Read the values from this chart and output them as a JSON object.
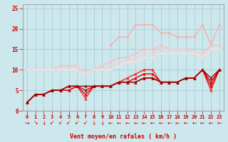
{
  "title": "",
  "xlabel": "Vent moyen/en rafales ( km/h )",
  "background_color": "#cce8ec",
  "grid_color": "#aaccd4",
  "x_ticks": [
    0,
    1,
    2,
    3,
    4,
    5,
    6,
    7,
    8,
    9,
    10,
    11,
    12,
    13,
    14,
    15,
    16,
    17,
    18,
    19,
    20,
    21,
    22,
    23
  ],
  "ylim": [
    0,
    26
  ],
  "yticks": [
    0,
    5,
    10,
    15,
    20,
    25
  ],
  "series": [
    {
      "color": "#ffaaaa",
      "linewidth": 1.0,
      "marker": "o",
      "markersize": 2.0,
      "data": [
        null,
        null,
        null,
        null,
        null,
        null,
        null,
        null,
        null,
        null,
        16,
        18,
        18,
        21,
        21,
        21,
        19,
        19,
        18,
        18,
        18,
        21,
        16,
        21
      ]
    },
    {
      "color": "#ffbbbb",
      "linewidth": 1.0,
      "marker": "o",
      "markersize": 2.0,
      "data": [
        10,
        10,
        10,
        10,
        11,
        11,
        11,
        9,
        10,
        11,
        12,
        13,
        13,
        14,
        15,
        15,
        16,
        15,
        15,
        15,
        14,
        14,
        16,
        16
      ]
    },
    {
      "color": "#ffcccc",
      "linewidth": 1.0,
      "marker": "o",
      "markersize": 2.0,
      "data": [
        10,
        10,
        10,
        10,
        10,
        10,
        11,
        9,
        10,
        10,
        11,
        12,
        12,
        13,
        14,
        14,
        15,
        15,
        15,
        15,
        14,
        14,
        15,
        15
      ]
    },
    {
      "color": "#ffdddd",
      "linewidth": 1.0,
      "marker": "o",
      "markersize": 2.0,
      "data": [
        10,
        10,
        10,
        10,
        10,
        10,
        10,
        9,
        10,
        10,
        10,
        11,
        12,
        12,
        13,
        13,
        14,
        14,
        14,
        14,
        14,
        13,
        15,
        15
      ]
    },
    {
      "color": "#ff2222",
      "linewidth": 1.0,
      "marker": "^",
      "markersize": 2.5,
      "data": [
        2,
        4,
        4,
        5,
        5,
        5,
        6,
        3,
        6,
        6,
        6,
        7,
        8,
        9,
        10,
        10,
        7,
        7,
        7,
        8,
        8,
        10,
        5,
        10
      ]
    },
    {
      "color": "#dd0000",
      "linewidth": 1.0,
      "marker": "^",
      "markersize": 2.5,
      "data": [
        2,
        4,
        4,
        5,
        5,
        5,
        6,
        4,
        6,
        6,
        6,
        7,
        7,
        8,
        9,
        9,
        7,
        7,
        7,
        8,
        8,
        10,
        6,
        10
      ]
    },
    {
      "color": "#bb0000",
      "linewidth": 1.0,
      "marker": "^",
      "markersize": 2.5,
      "data": [
        2,
        4,
        4,
        5,
        5,
        6,
        6,
        5,
        6,
        6,
        6,
        7,
        7,
        7,
        8,
        8,
        7,
        7,
        7,
        8,
        8,
        10,
        7,
        10
      ]
    },
    {
      "color": "#990000",
      "linewidth": 1.0,
      "marker": "^",
      "markersize": 2.5,
      "data": [
        2,
        4,
        4,
        5,
        5,
        6,
        6,
        6,
        6,
        6,
        6,
        7,
        7,
        7,
        8,
        8,
        7,
        7,
        7,
        8,
        8,
        10,
        8,
        10
      ]
    }
  ],
  "wind_symbols": [
    "→",
    "↘",
    "↓",
    "↙",
    "↙",
    "↙",
    "↙",
    "↙",
    "↓",
    "↓",
    "←",
    "←",
    "←",
    "←",
    "←",
    "←",
    "←",
    "←",
    "←",
    "←",
    "←",
    "←",
    "←",
    "←"
  ],
  "arrow_color": "#dd0000"
}
